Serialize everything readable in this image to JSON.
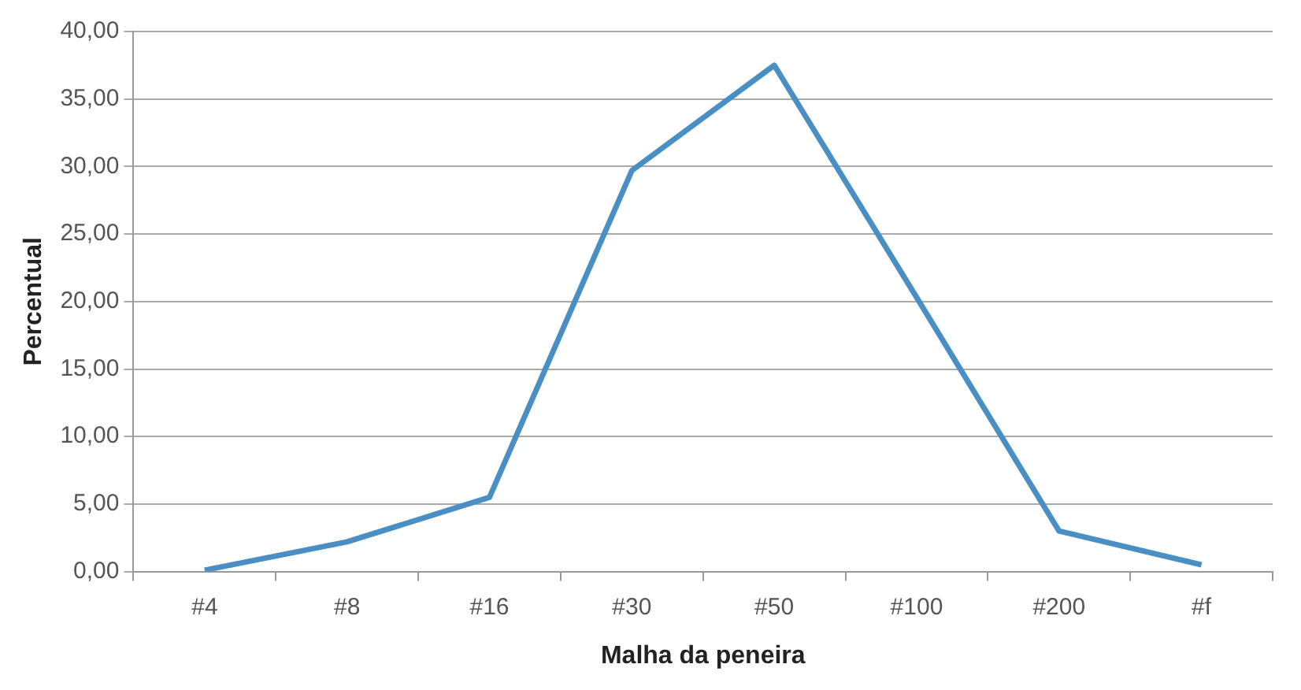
{
  "chart_data": {
    "type": "line",
    "xlabel": "Malha da peneira",
    "ylabel": "Percentual",
    "categories": [
      "#4",
      "#8",
      "#16",
      "#30",
      "#50",
      "#100",
      "#200",
      "#f"
    ],
    "series": [
      {
        "color": "#4a8fc4",
        "values": [
          0.1,
          2.2,
          5.5,
          29.7,
          37.5,
          20.3,
          3.0,
          0.5
        ]
      }
    ],
    "ylim": [
      0,
      40
    ],
    "yticks": [
      {
        "value": 0,
        "label": "0,00"
      },
      {
        "value": 5,
        "label": "5,00"
      },
      {
        "value": 10,
        "label": "10,00"
      },
      {
        "value": 15,
        "label": "15,00"
      },
      {
        "value": 20,
        "label": "20,00"
      },
      {
        "value": 25,
        "label": "25,00"
      },
      {
        "value": 30,
        "label": "30,00"
      },
      {
        "value": 35,
        "label": "35,00"
      },
      {
        "value": 40,
        "label": "40,00"
      }
    ],
    "grid": "y",
    "marker": "none",
    "line_style": "solid"
  }
}
